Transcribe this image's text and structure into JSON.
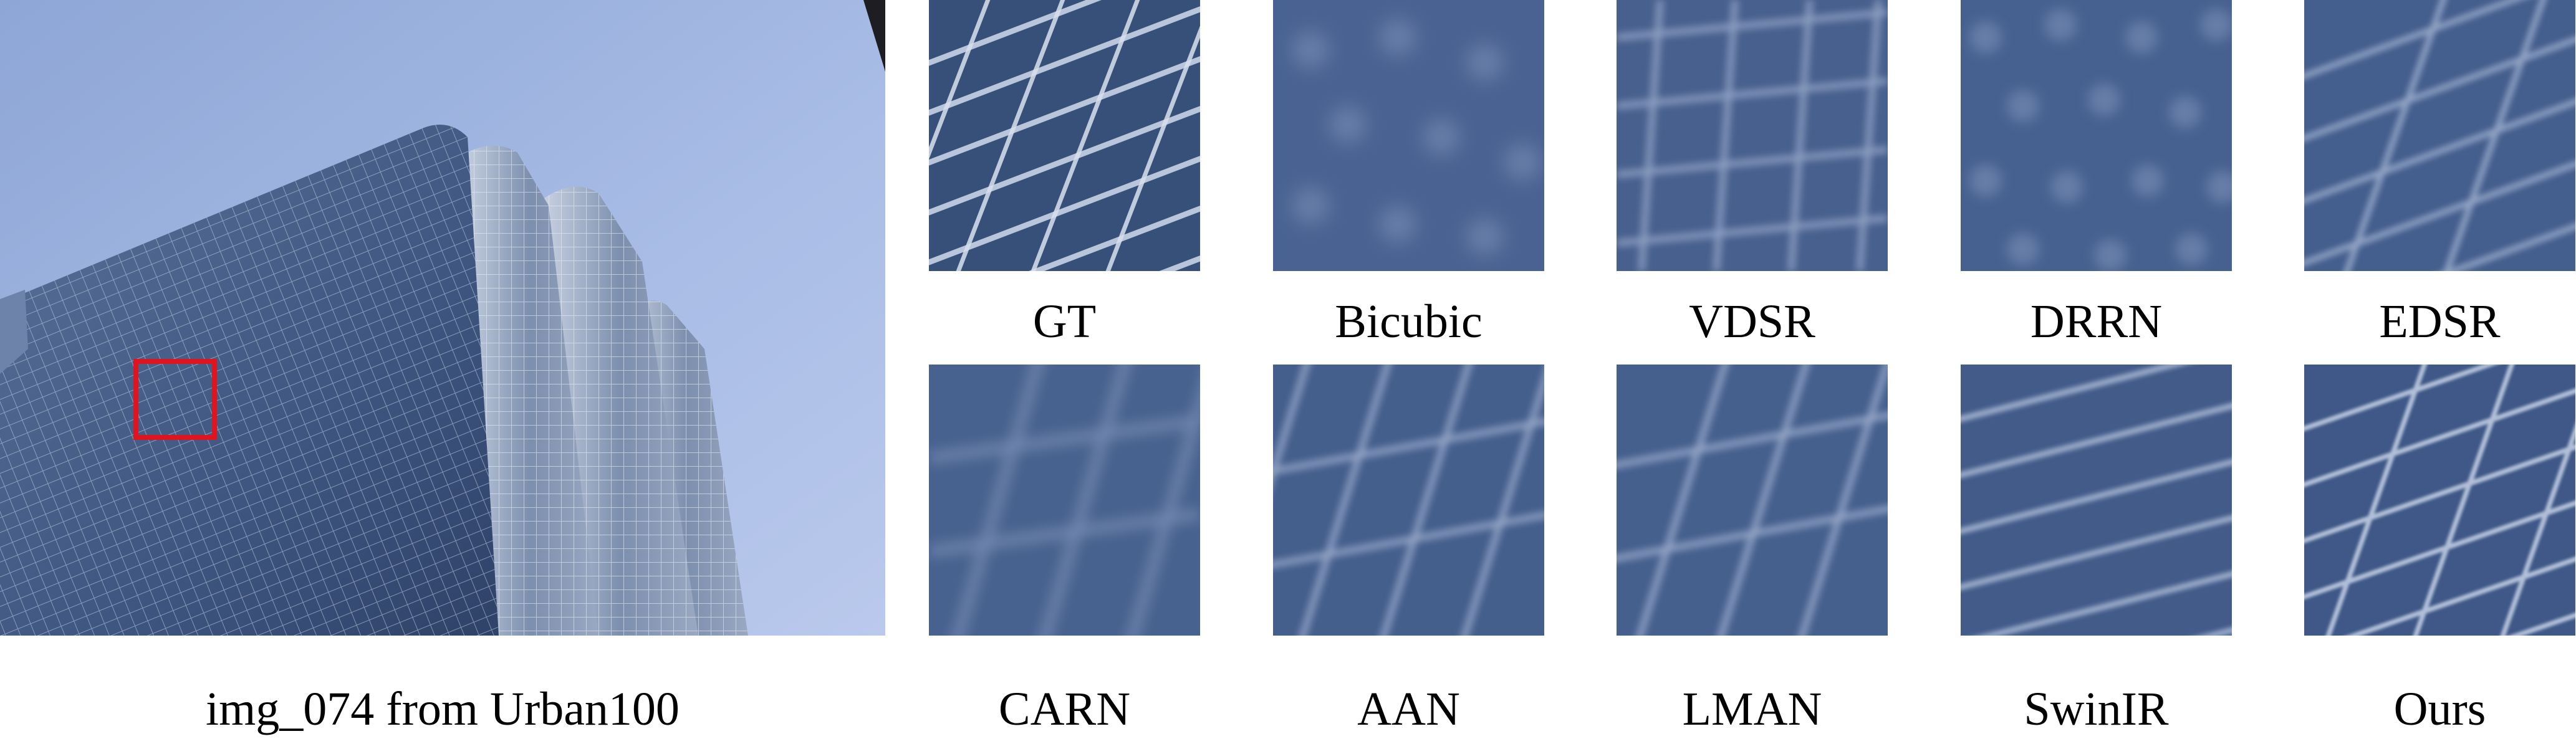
{
  "figure": {
    "main_caption": "img_074 from Urban100",
    "crops_row1": [
      {
        "id": "gt",
        "label": "GT"
      },
      {
        "id": "bicubic",
        "label": "Bicubic"
      },
      {
        "id": "vdsr",
        "label": "VDSR"
      },
      {
        "id": "drrn",
        "label": "DRRN"
      },
      {
        "id": "edsr",
        "label": "EDSR"
      }
    ],
    "crops_row2": [
      {
        "id": "carn",
        "label": "CARN"
      },
      {
        "id": "aan",
        "label": "AAN"
      },
      {
        "id": "lman",
        "label": "LMAN"
      },
      {
        "id": "swinir",
        "label": "SwinIR"
      },
      {
        "id": "ours",
        "label": "Ours"
      }
    ],
    "colors": {
      "sky": "#a9bde6",
      "glass": "#3f5a86",
      "highlight": "#c8d3e6",
      "crop_box": "#e0141e"
    }
  }
}
